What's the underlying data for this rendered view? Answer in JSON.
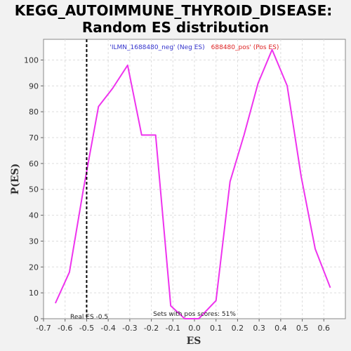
{
  "chart_data": {
    "type": "line",
    "title_line1": "KEGG_AUTOIMMUNE_THYROID_DISEASE:",
    "title_line2": "Random ES distribution",
    "xlabel": "ES",
    "ylabel": "P(ES)",
    "xlim": [
      -0.7,
      0.7
    ],
    "ylim": [
      0,
      108
    ],
    "x_ticks": [
      -0.7,
      -0.6,
      -0.5,
      -0.4,
      -0.3,
      -0.2,
      -0.1,
      0.0,
      0.1,
      0.2,
      0.3,
      0.4,
      0.5,
      0.6
    ],
    "x_tick_labels": [
      "-0.7",
      "-0.6",
      "-0.5",
      "-0.4",
      "-0.3",
      "-0.2",
      "-0.1",
      "0.0",
      "0.1",
      "0.2",
      "0.3",
      "0.4",
      "0.5",
      "0.6"
    ],
    "y_ticks": [
      0,
      10,
      20,
      30,
      40,
      50,
      60,
      70,
      80,
      90,
      100
    ],
    "y_tick_labels": [
      "0",
      "10",
      "20",
      "30",
      "40",
      "50",
      "60",
      "70",
      "80",
      "90",
      "100"
    ],
    "grid": true,
    "series": [
      {
        "color": "#ee33ee",
        "x": [
          -0.645,
          -0.58,
          -0.515,
          -0.445,
          -0.38,
          -0.31,
          -0.245,
          -0.18,
          -0.11,
          -0.045,
          0.02,
          0.1,
          0.165,
          0.23,
          0.295,
          0.36,
          0.43,
          0.495,
          0.56,
          0.63
        ],
        "y": [
          6,
          18,
          50,
          82,
          89,
          98,
          71,
          71,
          5,
          0,
          0,
          7,
          53,
          71,
          91,
          104,
          90,
          55,
          27,
          12
        ]
      }
    ],
    "real_es": -0.5,
    "legend": {
      "neg_label": "'ILMN_1688480_neg' (Neg ES)",
      "pos_label": "688480_pos' (Pos ES)",
      "neg_color": "#3333cc",
      "pos_color": "#dd2222",
      "position": "top-center"
    },
    "annotations": {
      "real_es_label": "Real ES -0.5",
      "sets_label": "Sets with pos scores: 51%"
    }
  }
}
